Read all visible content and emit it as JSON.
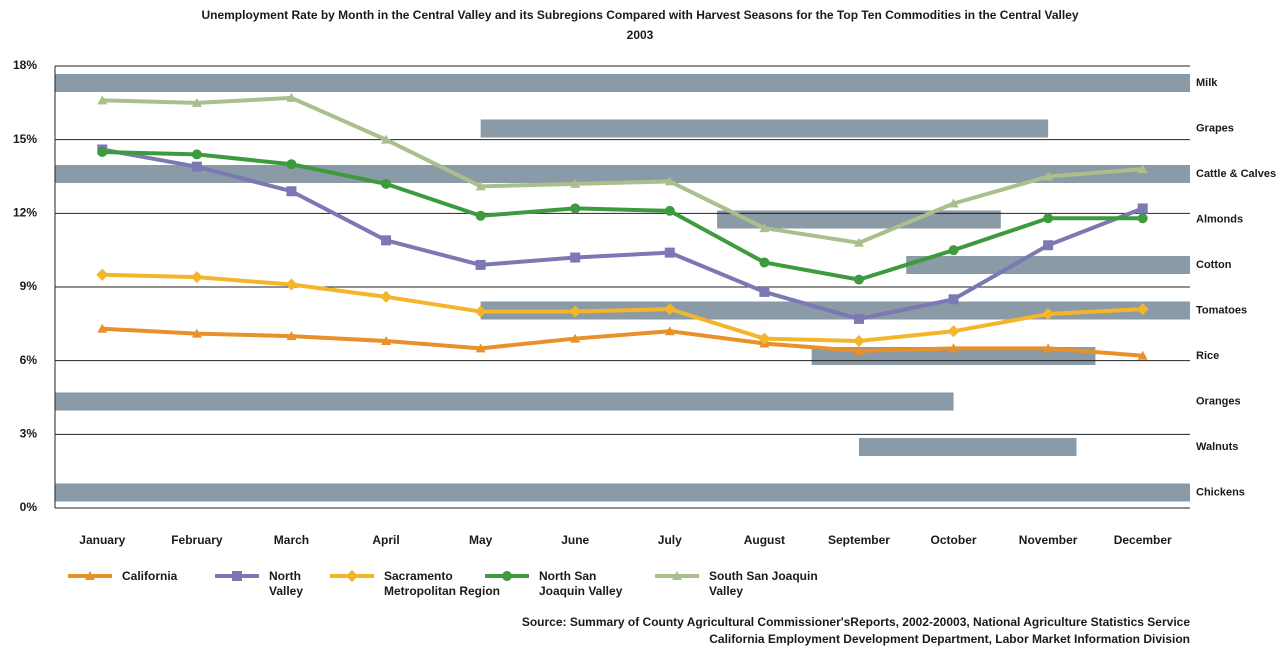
{
  "chart_data": {
    "type": "line",
    "title": "Unemployment Rate by Month in the Central Valley and its Subregions Compared with Harvest Seasons for the Top Ten Commodities in the Central Valley",
    "subtitle": "2003",
    "categories": [
      "January",
      "February",
      "March",
      "April",
      "May",
      "June",
      "July",
      "August",
      "September",
      "October",
      "November",
      "December"
    ],
    "ylim": [
      0,
      18
    ],
    "yticks": [
      {
        "value": 0,
        "label": "0%"
      },
      {
        "value": 3,
        "label": "3%"
      },
      {
        "value": 6,
        "label": "6%"
      },
      {
        "value": 9,
        "label": "9%"
      },
      {
        "value": 12,
        "label": "12%"
      },
      {
        "value": 15,
        "label": "15%"
      },
      {
        "value": 18,
        "label": "18%"
      }
    ],
    "grid": true,
    "series": [
      {
        "name": "California",
        "color": "#e8912a",
        "marker": "triangle",
        "values": [
          7.3,
          7.1,
          7.0,
          6.8,
          6.5,
          6.9,
          7.2,
          6.7,
          6.4,
          6.5,
          6.5,
          6.2
        ]
      },
      {
        "name": "North Valley",
        "color": "#7b78b3",
        "marker": "square",
        "values": [
          14.6,
          13.9,
          12.9,
          10.9,
          9.9,
          10.2,
          10.4,
          8.8,
          7.7,
          8.5,
          10.7,
          12.2
        ]
      },
      {
        "name": "Sacramento Metropolitan Region",
        "color": "#f3b62a",
        "marker": "diamond",
        "values": [
          9.5,
          9.4,
          9.1,
          8.6,
          8.0,
          8.0,
          8.1,
          6.9,
          6.8,
          7.2,
          7.9,
          8.1
        ]
      },
      {
        "name": "North San Joaquin Valley",
        "color": "#3e9a3e",
        "marker": "circle",
        "values": [
          14.5,
          14.4,
          14.0,
          13.2,
          11.9,
          12.2,
          12.1,
          10.0,
          9.3,
          10.5,
          11.8,
          11.8
        ]
      },
      {
        "name": "South San Joaquin Valley",
        "color": "#a9bf8c",
        "marker": "triangle",
        "values": [
          16.6,
          16.5,
          16.7,
          15.0,
          13.1,
          13.2,
          13.3,
          11.4,
          10.8,
          12.4,
          13.5,
          13.8
        ]
      }
    ],
    "harvest_color": "#8a9aa6",
    "harvest_seasons": [
      {
        "name": "Milk",
        "start": 0,
        "end": 12
      },
      {
        "name": "Grapes",
        "start": 4.5,
        "end": 10.5
      },
      {
        "name": "Cattle & Calves",
        "start": 0,
        "end": 12
      },
      {
        "name": "Almonds",
        "start": 7,
        "end": 10
      },
      {
        "name": "Cotton",
        "start": 9,
        "end": 12
      },
      {
        "name": "Tomatoes",
        "start": 4.5,
        "end": 12
      },
      {
        "name": "Rice",
        "start": 8,
        "end": 11
      },
      {
        "name": "Oranges",
        "start": 0,
        "end": 9.5
      },
      {
        "name": "Walnuts",
        "start": 8.5,
        "end": 10.8
      },
      {
        "name": "Chickens",
        "start": 0,
        "end": 12
      }
    ],
    "source": [
      "Source: Summary of County Agricultural Commissioner'sReports, 2002-20003, National Agriculture Statistics Service",
      "California Employment Development Department, Labor Market Information Division"
    ]
  }
}
